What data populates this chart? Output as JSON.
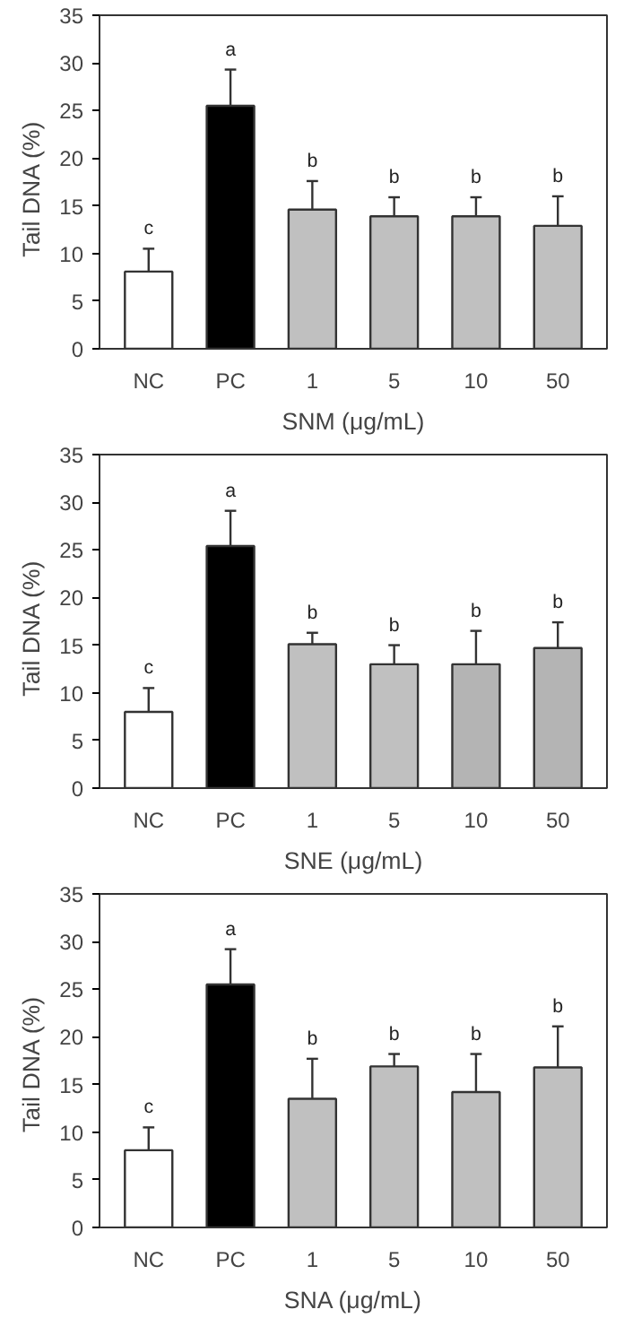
{
  "chart_data": [
    {
      "type": "bar",
      "xlabel": "SNM (μg/mL)",
      "ylabel": "Tail  DNA  (%)",
      "categories": [
        "NC",
        "PC",
        "1",
        "5",
        "10",
        "50"
      ],
      "values": [
        8.1,
        25.5,
        14.6,
        13.9,
        13.9,
        12.9
      ],
      "colors": [
        "#ffffff",
        "#000000",
        "#c0c0c0",
        "#c0c0c0",
        "#c0c0c0",
        "#c0c0c0"
      ],
      "errors": [
        [
          8.1,
          10.5
        ],
        [
          25.5,
          29.3
        ],
        [
          14.6,
          17.6
        ],
        [
          13.9,
          15.9
        ],
        [
          13.9,
          15.9
        ],
        [
          12.9,
          16.0
        ]
      ],
      "ylim": [
        0,
        35
      ],
      "yticks": [
        0,
        5,
        10,
        15,
        20,
        25,
        30,
        35
      ],
      "grid": false,
      "annotations": [
        "c",
        "a",
        "b",
        "b",
        "b",
        "b"
      ]
    },
    {
      "type": "bar",
      "xlabel": "SNE (μg/mL)",
      "ylabel": "Tail  DNA  (%)",
      "categories": [
        "NC",
        "PC",
        "1",
        "5",
        "10",
        "50"
      ],
      "values": [
        8.0,
        25.4,
        15.1,
        13.0,
        13.0,
        14.7
      ],
      "colors": [
        "#ffffff",
        "#000000",
        "#c0c0c0",
        "#c0c0c0",
        "#b4b4b4",
        "#b4b4b4"
      ],
      "errors": [
        [
          8.0,
          10.5
        ],
        [
          25.4,
          29.1
        ],
        [
          15.1,
          16.3
        ],
        [
          13.0,
          15.0
        ],
        [
          13.0,
          16.5
        ],
        [
          14.7,
          17.4
        ]
      ],
      "ylim": [
        0,
        35
      ],
      "yticks": [
        0,
        5,
        10,
        15,
        20,
        25,
        30,
        35
      ],
      "grid": false,
      "annotations": [
        "c",
        "a",
        "b",
        "b",
        "b",
        "b"
      ]
    },
    {
      "type": "bar",
      "xlabel": "SNA (μg/mL)",
      "ylabel": "Tail DNA  (%)",
      "categories": [
        "NC",
        "PC",
        "1",
        "5",
        "10",
        "50"
      ],
      "values": [
        8.1,
        25.5,
        13.5,
        16.9,
        14.2,
        16.8
      ],
      "colors": [
        "#ffffff",
        "#000000",
        "#c0c0c0",
        "#c0c0c0",
        "#c0c0c0",
        "#c0c0c0"
      ],
      "errors": [
        [
          8.1,
          10.5
        ],
        [
          25.5,
          29.2
        ],
        [
          13.5,
          17.7
        ],
        [
          16.9,
          18.2
        ],
        [
          14.2,
          18.2
        ],
        [
          16.8,
          21.1
        ]
      ],
      "ylim": [
        0,
        35
      ],
      "yticks": [
        0,
        5,
        10,
        15,
        20,
        25,
        30,
        35
      ],
      "grid": false,
      "annotations": [
        "c",
        "a",
        "b",
        "b",
        "b",
        "b"
      ]
    }
  ]
}
